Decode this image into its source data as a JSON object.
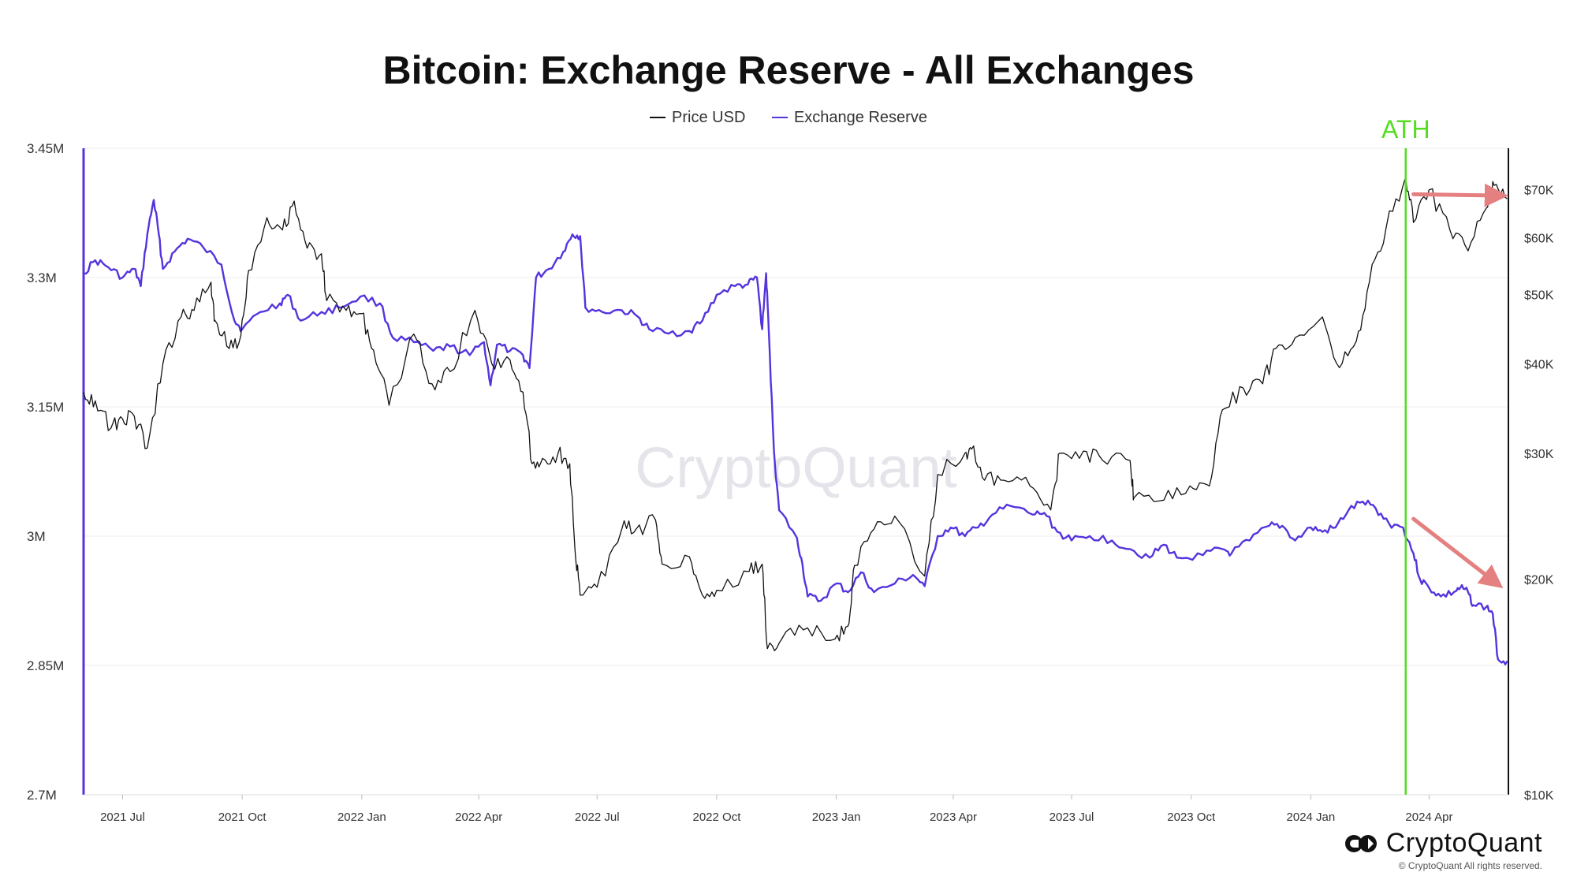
{
  "chart_data": {
    "type": "line",
    "title": "Bitcoin: Exchange Reserve - All Exchanges",
    "x_type": "date",
    "x_range": [
      "2021-06-01",
      "2024-06-01"
    ],
    "x_ticks": [
      {
        "date": "2021-07-01",
        "label": "2021 Jul"
      },
      {
        "date": "2021-10-01",
        "label": "2021 Oct"
      },
      {
        "date": "2022-01-01",
        "label": "2022 Jan"
      },
      {
        "date": "2022-04-01",
        "label": "2022 Apr"
      },
      {
        "date": "2022-07-01",
        "label": "2022 Jul"
      },
      {
        "date": "2022-10-01",
        "label": "2022 Oct"
      },
      {
        "date": "2023-01-01",
        "label": "2023 Jan"
      },
      {
        "date": "2023-04-01",
        "label": "2023 Apr"
      },
      {
        "date": "2023-07-01",
        "label": "2023 Jul"
      },
      {
        "date": "2023-10-01",
        "label": "2023 Oct"
      },
      {
        "date": "2024-01-01",
        "label": "2024 Jan"
      },
      {
        "date": "2024-04-01",
        "label": "2024 Apr"
      }
    ],
    "y_left": {
      "range": [
        2700000,
        3450000
      ],
      "ticks": [
        {
          "value": 2700000,
          "label": "2.7M"
        },
        {
          "value": 2850000,
          "label": "2.85M"
        },
        {
          "value": 3000000,
          "label": "3M"
        },
        {
          "value": 3150000,
          "label": "3.15M"
        },
        {
          "value": 3300000,
          "label": "3.3M"
        },
        {
          "value": 3450000,
          "label": "3.45M"
        }
      ]
    },
    "y_right": {
      "scale": "log",
      "range": [
        10000,
        80000
      ],
      "ticks": [
        {
          "value": 10000,
          "label": "$10K"
        },
        {
          "value": 20000,
          "label": "$20K"
        },
        {
          "value": 30000,
          "label": "$30K"
        },
        {
          "value": 40000,
          "label": "$40K"
        },
        {
          "value": 50000,
          "label": "$50K"
        },
        {
          "value": 60000,
          "label": "$60K"
        },
        {
          "value": 70000,
          "label": "$70K"
        }
      ]
    },
    "grid": true,
    "legend_position": "top-center",
    "series": [
      {
        "name": "Price USD",
        "axis": "right",
        "color": "#111111",
        "points": [
          [
            "2021-06-01",
            36500
          ],
          [
            "2021-06-10",
            35500
          ],
          [
            "2021-06-22",
            32500
          ],
          [
            "2021-07-01",
            33500
          ],
          [
            "2021-07-10",
            33800
          ],
          [
            "2021-07-20",
            30500
          ],
          [
            "2021-08-01",
            40000
          ],
          [
            "2021-08-15",
            46500
          ],
          [
            "2021-08-25",
            47500
          ],
          [
            "2021-09-07",
            52000
          ],
          [
            "2021-09-10",
            46000
          ],
          [
            "2021-09-21",
            42000
          ],
          [
            "2021-09-30",
            43800
          ],
          [
            "2021-10-06",
            54000
          ],
          [
            "2021-10-20",
            64000
          ],
          [
            "2021-11-01",
            61500
          ],
          [
            "2021-11-10",
            67500
          ],
          [
            "2021-11-20",
            58000
          ],
          [
            "2021-12-01",
            57000
          ],
          [
            "2021-12-05",
            49000
          ],
          [
            "2021-12-20",
            47500
          ],
          [
            "2022-01-01",
            47000
          ],
          [
            "2022-01-10",
            41800
          ],
          [
            "2022-01-22",
            35000
          ],
          [
            "2022-02-10",
            44000
          ],
          [
            "2022-02-24",
            37500
          ],
          [
            "2022-03-10",
            39000
          ],
          [
            "2022-03-29",
            47500
          ],
          [
            "2022-04-11",
            40000
          ],
          [
            "2022-04-25",
            40500
          ],
          [
            "2022-05-05",
            36500
          ],
          [
            "2022-05-12",
            29000
          ],
          [
            "2022-05-20",
            29500
          ],
          [
            "2022-06-01",
            30000
          ],
          [
            "2022-06-10",
            29000
          ],
          [
            "2022-06-14",
            22000
          ],
          [
            "2022-06-18",
            19000
          ],
          [
            "2022-07-01",
            19500
          ],
          [
            "2022-07-20",
            23500
          ],
          [
            "2022-07-31",
            23500
          ],
          [
            "2022-08-15",
            24200
          ],
          [
            "2022-08-20",
            21000
          ],
          [
            "2022-09-10",
            21500
          ],
          [
            "2022-09-20",
            19000
          ],
          [
            "2022-10-01",
            19300
          ],
          [
            "2022-10-26",
            20500
          ],
          [
            "2022-11-05",
            21000
          ],
          [
            "2022-11-09",
            16000
          ],
          [
            "2022-11-20",
            16500
          ],
          [
            "2022-12-10",
            17100
          ],
          [
            "2022-12-31",
            16500
          ],
          [
            "2023-01-10",
            17200
          ],
          [
            "2023-01-15",
            20900
          ],
          [
            "2023-01-30",
            23500
          ],
          [
            "2023-02-15",
            24500
          ],
          [
            "2023-03-10",
            20200
          ],
          [
            "2023-03-20",
            28000
          ],
          [
            "2023-04-10",
            30000
          ],
          [
            "2023-04-15",
            30400
          ],
          [
            "2023-04-25",
            27500
          ],
          [
            "2023-05-10",
            27500
          ],
          [
            "2023-05-30",
            27000
          ],
          [
            "2023-06-15",
            25000
          ],
          [
            "2023-06-22",
            30000
          ],
          [
            "2023-07-10",
            30200
          ],
          [
            "2023-07-25",
            29300
          ],
          [
            "2023-08-15",
            29300
          ],
          [
            "2023-08-18",
            26000
          ],
          [
            "2023-09-10",
            25800
          ],
          [
            "2023-09-30",
            27000
          ],
          [
            "2023-10-15",
            27000
          ],
          [
            "2023-10-25",
            34500
          ],
          [
            "2023-11-10",
            37000
          ],
          [
            "2023-11-25",
            37500
          ],
          [
            "2023-12-05",
            42000
          ],
          [
            "2023-12-20",
            43500
          ],
          [
            "2024-01-10",
            46500
          ],
          [
            "2024-01-23",
            39500
          ],
          [
            "2024-02-05",
            43000
          ],
          [
            "2024-02-15",
            52000
          ],
          [
            "2024-02-28",
            62000
          ],
          [
            "2024-03-14",
            73000
          ],
          [
            "2024-03-20",
            63000
          ],
          [
            "2024-04-01",
            70000
          ],
          [
            "2024-04-17",
            61500
          ],
          [
            "2024-05-01",
            57500
          ],
          [
            "2024-05-15",
            66000
          ],
          [
            "2024-05-21",
            71000
          ],
          [
            "2024-05-31",
            68000
          ]
        ]
      },
      {
        "name": "Exchange Reserve",
        "axis": "left",
        "color": "#5533dd",
        "points": [
          [
            "2021-06-01",
            3305000
          ],
          [
            "2021-06-10",
            3320000
          ],
          [
            "2021-06-20",
            3312000
          ],
          [
            "2021-07-01",
            3300000
          ],
          [
            "2021-07-10",
            3310000
          ],
          [
            "2021-07-15",
            3290000
          ],
          [
            "2021-07-20",
            3350000
          ],
          [
            "2021-07-25",
            3390000
          ],
          [
            "2021-07-28",
            3360000
          ],
          [
            "2021-08-01",
            3310000
          ],
          [
            "2021-08-10",
            3330000
          ],
          [
            "2021-08-20",
            3345000
          ],
          [
            "2021-09-01",
            3335000
          ],
          [
            "2021-09-15",
            3315000
          ],
          [
            "2021-09-25",
            3250000
          ],
          [
            "2021-10-01",
            3240000
          ],
          [
            "2021-10-15",
            3260000
          ],
          [
            "2021-10-30",
            3270000
          ],
          [
            "2021-11-05",
            3280000
          ],
          [
            "2021-11-15",
            3250000
          ],
          [
            "2021-12-01",
            3260000
          ],
          [
            "2021-12-15",
            3265000
          ],
          [
            "2021-12-31",
            3278000
          ],
          [
            "2022-01-15",
            3270000
          ],
          [
            "2022-01-25",
            3230000
          ],
          [
            "2022-02-10",
            3225000
          ],
          [
            "2022-02-25",
            3215000
          ],
          [
            "2022-03-10",
            3220000
          ],
          [
            "2022-03-25",
            3210000
          ],
          [
            "2022-04-05",
            3225000
          ],
          [
            "2022-04-10",
            3175000
          ],
          [
            "2022-04-15",
            3222000
          ],
          [
            "2022-04-25",
            3215000
          ],
          [
            "2022-05-05",
            3210000
          ],
          [
            "2022-05-10",
            3195000
          ],
          [
            "2022-05-15",
            3300000
          ],
          [
            "2022-05-25",
            3310000
          ],
          [
            "2022-06-05",
            3330000
          ],
          [
            "2022-06-12",
            3350000
          ],
          [
            "2022-06-18",
            3348000
          ],
          [
            "2022-06-22",
            3265000
          ],
          [
            "2022-07-05",
            3260000
          ],
          [
            "2022-07-20",
            3262000
          ],
          [
            "2022-08-01",
            3255000
          ],
          [
            "2022-08-10",
            3240000
          ],
          [
            "2022-08-25",
            3235000
          ],
          [
            "2022-09-10",
            3238000
          ],
          [
            "2022-09-20",
            3250000
          ],
          [
            "2022-10-01",
            3280000
          ],
          [
            "2022-10-15",
            3290000
          ],
          [
            "2022-10-25",
            3292000
          ],
          [
            "2022-11-01",
            3300000
          ],
          [
            "2022-11-05",
            3240000
          ],
          [
            "2022-11-08",
            3305000
          ],
          [
            "2022-11-10",
            3240000
          ],
          [
            "2022-11-14",
            3100000
          ],
          [
            "2022-11-18",
            3030000
          ],
          [
            "2022-12-01",
            3000000
          ],
          [
            "2022-12-05",
            2975000
          ],
          [
            "2022-12-10",
            2930000
          ],
          [
            "2022-12-20",
            2925000
          ],
          [
            "2023-01-01",
            2945000
          ],
          [
            "2023-01-10",
            2935000
          ],
          [
            "2023-01-20",
            2958000
          ],
          [
            "2023-01-30",
            2935000
          ],
          [
            "2023-02-15",
            2945000
          ],
          [
            "2023-03-01",
            2955000
          ],
          [
            "2023-03-10",
            2942000
          ],
          [
            "2023-03-20",
            3000000
          ],
          [
            "2023-03-30",
            3010000
          ],
          [
            "2023-04-10",
            3000000
          ],
          [
            "2023-04-20",
            3010000
          ],
          [
            "2023-05-01",
            3025000
          ],
          [
            "2023-05-15",
            3035000
          ],
          [
            "2023-06-01",
            3025000
          ],
          [
            "2023-06-10",
            3027000
          ],
          [
            "2023-06-20",
            3005000
          ],
          [
            "2023-07-01",
            2995000
          ],
          [
            "2023-07-15",
            3000000
          ],
          [
            "2023-08-01",
            2995000
          ],
          [
            "2023-08-15",
            2985000
          ],
          [
            "2023-08-30",
            2975000
          ],
          [
            "2023-09-10",
            2990000
          ],
          [
            "2023-09-20",
            2975000
          ],
          [
            "2023-10-10",
            2978000
          ],
          [
            "2023-10-25",
            2985000
          ],
          [
            "2023-11-01",
            2980000
          ],
          [
            "2023-11-15",
            2995000
          ],
          [
            "2023-11-30",
            3012000
          ],
          [
            "2023-12-10",
            3012000
          ],
          [
            "2023-12-20",
            2995000
          ],
          [
            "2024-01-01",
            3010000
          ],
          [
            "2024-01-10",
            3005000
          ],
          [
            "2024-01-20",
            3010000
          ],
          [
            "2024-01-30",
            3030000
          ],
          [
            "2024-02-10",
            3040000
          ],
          [
            "2024-02-20",
            3032000
          ],
          [
            "2024-03-01",
            3015000
          ],
          [
            "2024-03-12",
            3010000
          ],
          [
            "2024-03-20",
            2980000
          ],
          [
            "2024-03-25",
            2950000
          ],
          [
            "2024-04-01",
            2940000
          ],
          [
            "2024-04-10",
            2930000
          ],
          [
            "2024-04-20",
            2935000
          ],
          [
            "2024-04-25",
            2940000
          ],
          [
            "2024-05-01",
            2935000
          ],
          [
            "2024-05-05",
            2920000
          ],
          [
            "2024-05-15",
            2918000
          ],
          [
            "2024-05-20",
            2910000
          ],
          [
            "2024-05-24",
            2857000
          ],
          [
            "2024-05-31",
            2855000
          ]
        ]
      }
    ],
    "annotations": [
      {
        "type": "vertical-line",
        "date": "2024-03-14",
        "label": "ATH",
        "color": "#55dd22"
      },
      {
        "type": "arrow",
        "color": "#e58080",
        "from": {
          "date": "2024-03-20",
          "right_value": 69000
        },
        "to": {
          "date": "2024-05-31",
          "right_value": 68000
        }
      },
      {
        "type": "arrow",
        "color": "#e58080",
        "from": {
          "date": "2024-03-20",
          "left_value": 3020000
        },
        "to": {
          "date": "2024-05-28",
          "left_value": 2940000
        }
      }
    ],
    "watermark": "CryptoQuant"
  },
  "branding": {
    "name": "CryptoQuant",
    "copyright": "© CryptoQuant All rights reserved."
  }
}
